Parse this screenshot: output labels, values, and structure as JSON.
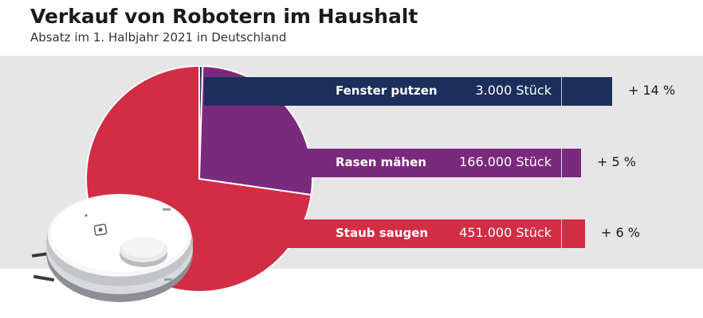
{
  "header": {
    "title": "Verkauf von Robotern im Haushalt",
    "subtitle": "Absatz im 1. Halbjahr 2021 in Deutschland"
  },
  "chart_data": {
    "type": "bar",
    "title": "Verkauf von Robotern im Haushalt",
    "subtitle": "Absatz im 1. Halbjahr 2021 in Deutschland",
    "categories": [
      "Fenster putzen",
      "Rasen mähen",
      "Staub saugen"
    ],
    "values": [
      3000,
      166000,
      451000
    ],
    "value_labels": [
      "3.000 Stück",
      "166.000 Stück",
      "451.000 Stück"
    ],
    "changes": [
      "+ 14 %",
      "+ 5 %",
      "+ 6 %"
    ],
    "colors": [
      "#1c2f5c",
      "#7a2a7c",
      "#d12e45"
    ],
    "pie": {
      "type": "pie",
      "slices": [
        "Fenster putzen",
        "Rasen mähen",
        "Staub saugen"
      ],
      "values": [
        3000,
        166000,
        451000
      ]
    },
    "illustration": "robot-vacuum-cleaner"
  }
}
